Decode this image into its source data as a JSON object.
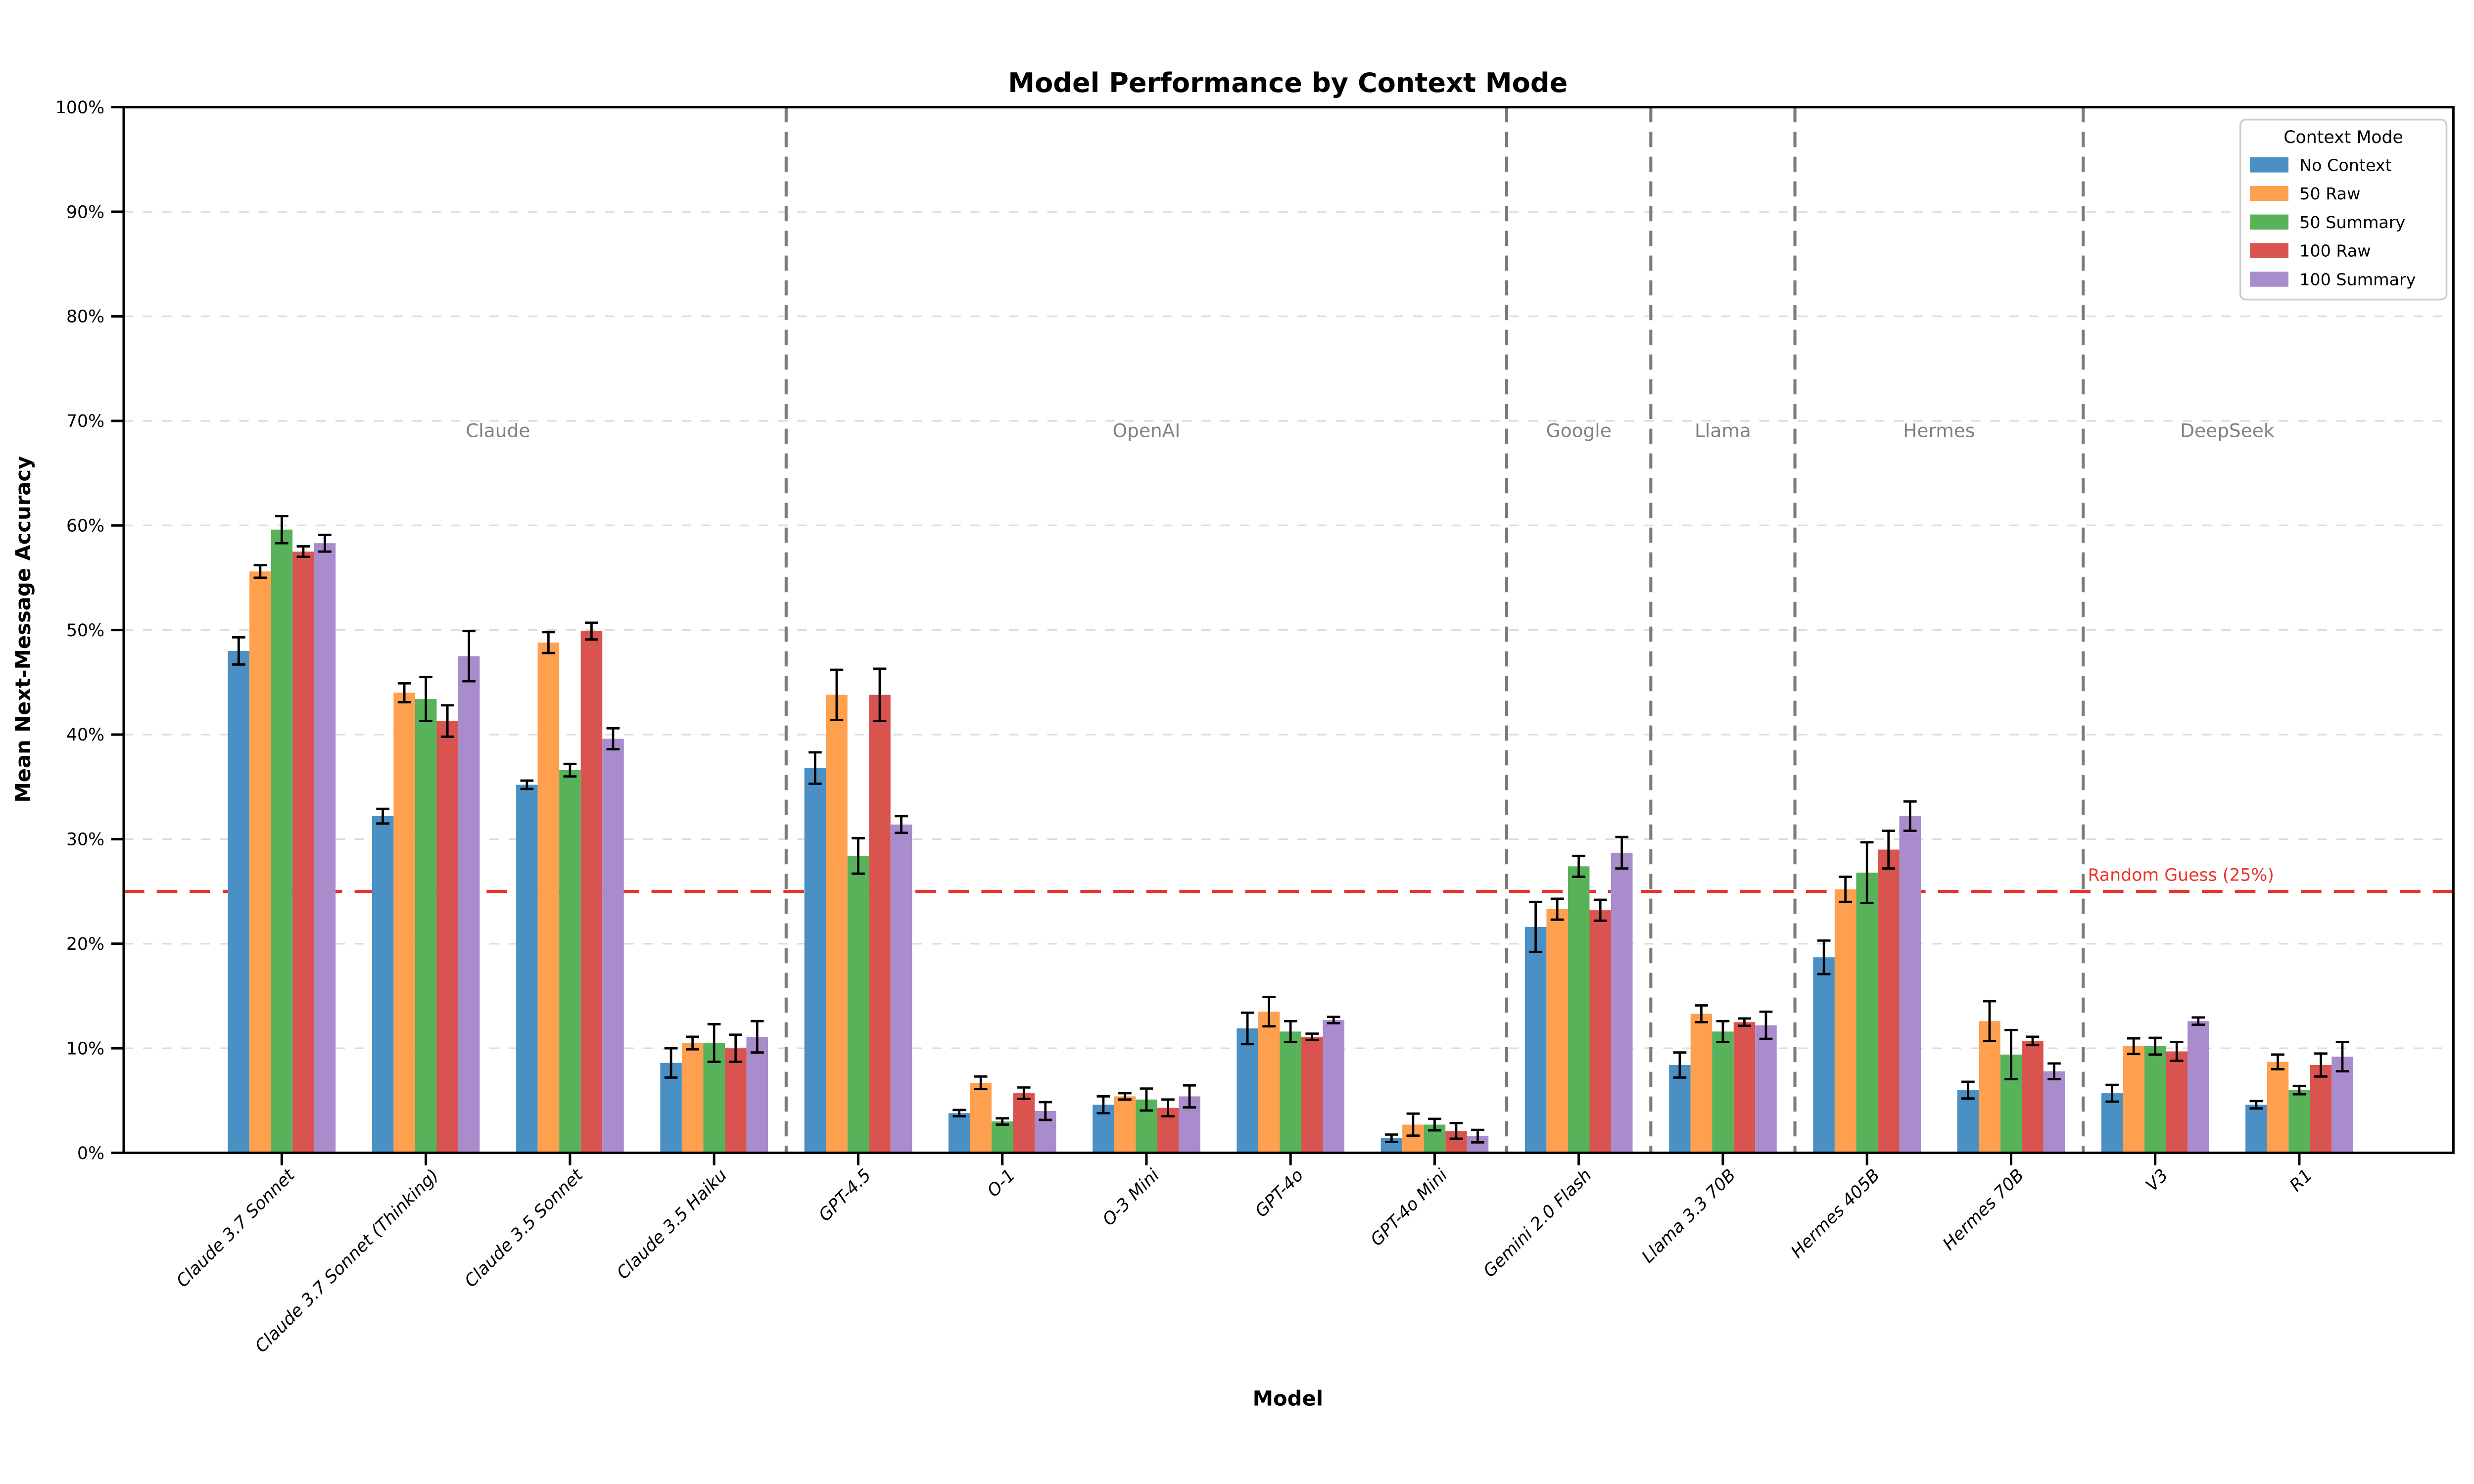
{
  "title": "Model Performance by Context Mode",
  "x_axis_label": "Model",
  "y_axis_label": "Mean Next-Message Accuracy",
  "legend": {
    "title": "Context Mode",
    "items": [
      "No Context",
      "50 Raw",
      "50 Summary",
      "100 Raw",
      "100 Summary"
    ]
  },
  "reference_line": {
    "label": "Random Guess (25%)",
    "value": 25,
    "color": "#e8352c"
  },
  "colors": {
    "no_context": "#4a90c4",
    "raw_50": "#ffa04f",
    "summary_50": "#57b25a",
    "raw_100": "#d9534f",
    "summary_100": "#a98ccc",
    "separator": "#7a7a7a",
    "gridline": "#dcdcdc",
    "vendor_text": "#808080"
  },
  "chart_data": {
    "type": "bar",
    "title": "Model Performance by Context Mode",
    "xlabel": "Model",
    "ylabel": "Mean Next-Message Accuracy",
    "ylim": [
      0,
      100
    ],
    "grid": true,
    "legend_position": "upper right",
    "ytick_labels": [
      "0%",
      "10%",
      "20%",
      "30%",
      "40%",
      "50%",
      "60%",
      "70%",
      "80%",
      "90%",
      "100%"
    ],
    "categories": [
      "Claude 3.7 Sonnet",
      "Claude 3.7 Sonnet (Thinking)",
      "Claude 3.5 Sonnet",
      "Claude 3.5 Haiku",
      "GPT-4.5",
      "O-1",
      "O-3 Mini",
      "GPT-4o",
      "GPT-4o Mini",
      "Gemini 2.0 Flash",
      "Llama 3.3 70B",
      "Hermes 405B",
      "Hermes 70B",
      "V3",
      "R1"
    ],
    "vendor_groups": [
      {
        "label": "Claude",
        "start": 0,
        "end": 3
      },
      {
        "label": "OpenAI",
        "start": 4,
        "end": 8
      },
      {
        "label": "Google",
        "start": 9,
        "end": 9
      },
      {
        "label": "Llama",
        "start": 10,
        "end": 10
      },
      {
        "label": "Hermes",
        "start": 11,
        "end": 12
      },
      {
        "label": "DeepSeek",
        "start": 13,
        "end": 14
      }
    ],
    "series": [
      {
        "name": "No Context",
        "color": "#4a90c4",
        "values": [
          48.0,
          32.2,
          35.2,
          8.6,
          36.8,
          3.8,
          4.6,
          11.9,
          1.4,
          21.6,
          8.4,
          18.7,
          6.0,
          5.7,
          4.6
        ],
        "errors": [
          1.3,
          0.7,
          0.4,
          1.4,
          1.5,
          0.3,
          0.8,
          1.5,
          0.35,
          2.4,
          1.2,
          1.6,
          0.8,
          0.8,
          0.35
        ]
      },
      {
        "name": "50 Raw",
        "color": "#ffa04f",
        "values": [
          55.6,
          44.0,
          48.8,
          10.5,
          43.8,
          6.7,
          5.4,
          13.5,
          2.7,
          23.3,
          13.3,
          25.2,
          12.6,
          10.2,
          8.7
        ],
        "errors": [
          0.6,
          0.9,
          1.0,
          0.6,
          2.4,
          0.6,
          0.3,
          1.4,
          1.05,
          1.0,
          0.8,
          1.2,
          1.9,
          0.75,
          0.7
        ]
      },
      {
        "name": "50 Summary",
        "color": "#57b25a",
        "values": [
          59.6,
          43.4,
          36.6,
          10.5,
          28.4,
          3.0,
          5.1,
          11.6,
          2.7,
          27.4,
          11.6,
          26.8,
          9.4,
          10.2,
          6.0
        ],
        "errors": [
          1.3,
          2.1,
          0.6,
          1.8,
          1.7,
          0.3,
          1.05,
          1.0,
          0.55,
          1.0,
          1.0,
          2.9,
          2.35,
          0.8,
          0.4
        ]
      },
      {
        "name": "100 Raw",
        "color": "#d9534f",
        "values": [
          57.5,
          41.3,
          49.9,
          10.0,
          43.8,
          5.7,
          4.3,
          11.1,
          2.1,
          23.2,
          12.5,
          29.0,
          10.7,
          9.7,
          8.4
        ],
        "errors": [
          0.5,
          1.5,
          0.8,
          1.3,
          2.5,
          0.55,
          0.8,
          0.3,
          0.75,
          1.0,
          0.35,
          1.8,
          0.4,
          0.9,
          1.1
        ]
      },
      {
        "name": "100 Summary",
        "color": "#a98ccc",
        "values": [
          58.3,
          47.5,
          39.6,
          11.1,
          31.4,
          4.0,
          5.4,
          12.7,
          1.6,
          28.7,
          12.2,
          32.2,
          7.8,
          12.6,
          9.2
        ],
        "errors": [
          0.8,
          2.4,
          1.0,
          1.5,
          0.8,
          0.85,
          1.05,
          0.3,
          0.6,
          1.5,
          1.3,
          1.4,
          0.75,
          0.35,
          1.4
        ]
      }
    ]
  }
}
